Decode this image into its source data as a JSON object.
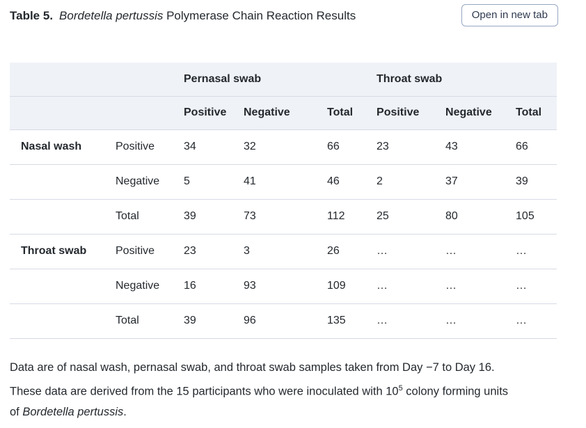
{
  "title": {
    "label": "Table 5.",
    "subject_italic": "Bordetella pertussis",
    "rest": "Polymerase Chain Reaction Results"
  },
  "toolbar": {
    "open_button": "Open in new tab"
  },
  "table": {
    "col_groups": [
      {
        "label": "Pernasal swab"
      },
      {
        "label": "Throat swab"
      }
    ],
    "sub_headers": [
      "Positive",
      "Negative",
      "Total",
      "Positive",
      "Negative",
      "Total"
    ],
    "rows": [
      {
        "group": "Nasal wash",
        "label": "Positive",
        "cells": [
          "34",
          "32",
          "66",
          "23",
          "43",
          "66"
        ]
      },
      {
        "group": "",
        "label": "Negative",
        "cells": [
          "5",
          "41",
          "46",
          "2",
          "37",
          "39"
        ]
      },
      {
        "group": "",
        "label": "Total",
        "cells": [
          "39",
          "73",
          "112",
          "25",
          "80",
          "105"
        ]
      },
      {
        "group": "Throat swab",
        "label": "Positive",
        "cells": [
          "23",
          "3",
          "26",
          "…",
          "…",
          "…"
        ]
      },
      {
        "group": "",
        "label": "Negative",
        "cells": [
          "16",
          "93",
          "109",
          "…",
          "…",
          "…"
        ]
      },
      {
        "group": "",
        "label": "Total",
        "cells": [
          "39",
          "96",
          "135",
          "…",
          "…",
          "…"
        ]
      }
    ]
  },
  "footnote": {
    "text_before_sup": "Data are of nasal wash, pernasal swab, and throat swab samples taken from Day −7 to Day 16. These data are derived from the 15 participants who were inoculated with 10",
    "sup": "5",
    "text_after_sup": " colony forming units of ",
    "species_italic": "Bordetella pertussis",
    "end": "."
  },
  "colors": {
    "header_bg": "#eff2f7",
    "divider": "#d6dae4",
    "text": "#24292e",
    "button_border": "#97a6c4",
    "button_text": "#2f3a50",
    "page_bg": "#ffffff"
  }
}
